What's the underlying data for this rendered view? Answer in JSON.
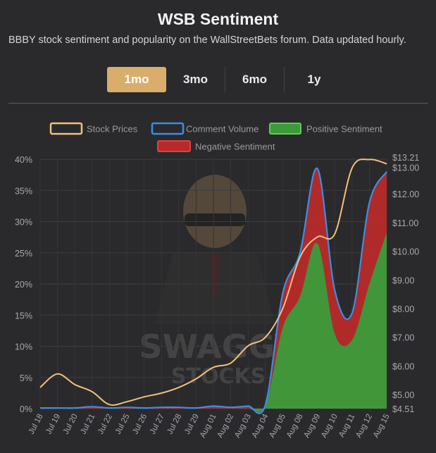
{
  "header": {
    "title": "WSB Sentiment",
    "subtitle": "BBBY stock sentiment and popularity on the WallStreetBets forum. Data updated hourly."
  },
  "tabs": [
    {
      "label": "1mo",
      "active": true
    },
    {
      "label": "3mo",
      "active": false
    },
    {
      "label": "6mo",
      "active": false
    },
    {
      "label": "1y",
      "active": false
    }
  ],
  "watermark": {
    "line1": "SWAGGY",
    "line2": "STOCKS"
  },
  "colors": {
    "background": "#2a2a2c",
    "accent": "#d9ad6b",
    "stock": "#f0c07e",
    "comment": "#3a8ee6",
    "positive": "#3c9a3a",
    "negative": "#b82a2a"
  },
  "chart_data": {
    "type": "area",
    "title": "",
    "categories": [
      "Jul 18",
      "Jul 19",
      "Jul 20",
      "Jul 21",
      "Jul 22",
      "Jul 25",
      "Jul 26",
      "Jul 27",
      "Jul 28",
      "Jul 29",
      "Aug 01",
      "Aug 02",
      "Aug 03",
      "Aug 04",
      "Aug 05",
      "Aug 08",
      "Aug 09",
      "Aug 10",
      "Aug 11",
      "Aug 12",
      "Aug 15"
    ],
    "legend_position": "top",
    "grid": true,
    "y_left": {
      "ticks": [
        "0%",
        "5%",
        "10%",
        "15%",
        "20%",
        "25%",
        "30%",
        "35%",
        "40%"
      ],
      "range": [
        0,
        40
      ]
    },
    "y_right": {
      "ticks": [
        "$4.51",
        "$5.00",
        "$6.00",
        "$7.00",
        "$8.00",
        "$9.00",
        "$10.00",
        "$11.00",
        "$12.00",
        "$13.00",
        "$13.21"
      ],
      "range": [
        4.51,
        13.21
      ]
    },
    "series": [
      {
        "name": "Stock Prices",
        "axis": "right",
        "color": "#f0c07e",
        "values": [
          5.25,
          5.72,
          5.35,
          5.1,
          4.65,
          4.75,
          4.92,
          5.05,
          5.25,
          5.55,
          5.95,
          6.1,
          6.7,
          7.0,
          8.0,
          9.8,
          10.5,
          10.6,
          12.9,
          13.2,
          13.05
        ]
      },
      {
        "name": "Comment Volume",
        "axis": "left",
        "color": "#3a8ee6",
        "values": [
          0.1,
          0.1,
          0.1,
          0.3,
          0.1,
          0.2,
          0.1,
          0.2,
          0.2,
          0.1,
          0.4,
          0.2,
          0.4,
          0.6,
          18.5,
          25,
          38.5,
          19,
          15.3,
          33,
          38
        ]
      },
      {
        "name": "Positive Sentiment",
        "axis": "left",
        "color": "#3c9a3a",
        "values": [
          0,
          0,
          0,
          0,
          0,
          0,
          0,
          0,
          0,
          0,
          0,
          0,
          0,
          0.5,
          13,
          18,
          26.5,
          12,
          11,
          20,
          28.2
        ]
      },
      {
        "name": "Negative Sentiment",
        "axis": "left",
        "color": "#b82a2a",
        "values": [
          0,
          0,
          0,
          0,
          0,
          0,
          0,
          0,
          0,
          0,
          0,
          0,
          0,
          0,
          5.5,
          7,
          12,
          7,
          4.3,
          13,
          9.8
        ]
      }
    ]
  }
}
